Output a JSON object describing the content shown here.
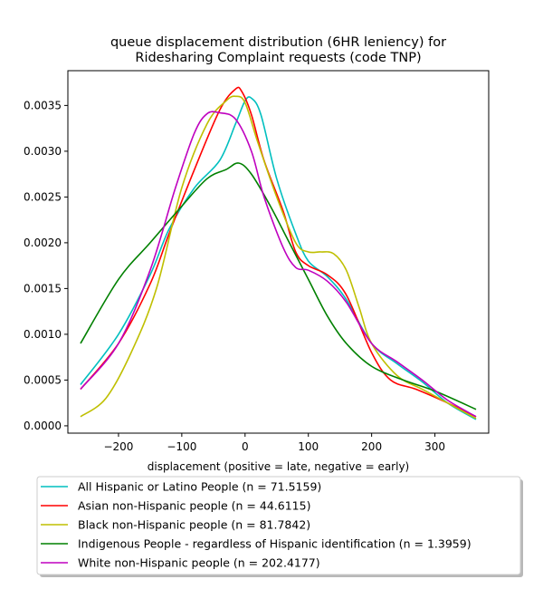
{
  "chart_data": {
    "type": "line",
    "title": "queue displacement distribution (6HR leniency) for\nRidesharing Complaint  requests (code TNP)",
    "xlabel": "displacement (positive = late, negative = early)",
    "ylabel": "",
    "xlim": [
      -280,
      385
    ],
    "ylim": [
      -8e-05,
      0.00388
    ],
    "xticks": [
      -200,
      -100,
      0,
      100,
      200,
      300
    ],
    "xtick_labels": [
      "−200",
      "−100",
      "0",
      "100",
      "200",
      "300"
    ],
    "yticks": [
      0.0,
      0.0005,
      0.001,
      0.0015,
      0.002,
      0.0025,
      0.003,
      0.0035
    ],
    "ytick_labels": [
      "0.0000",
      "0.0005",
      "0.0010",
      "0.0015",
      "0.0020",
      "0.0025",
      "0.0030",
      "0.0035"
    ],
    "grid": false,
    "legend_position": "below chart",
    "series": [
      {
        "name": "All Hispanic or Latino People (n = 71.5159)",
        "color": "#00bfbf",
        "x": [
          -260,
          -200,
          -150,
          -120,
          -80,
          -40,
          -15,
          0,
          10,
          25,
          50,
          80,
          100,
          130,
          160,
          200,
          240,
          280,
          320,
          365
        ],
        "y": [
          0.00045,
          0.001,
          0.00165,
          0.00215,
          0.0026,
          0.0029,
          0.0033,
          0.00355,
          0.00358,
          0.0034,
          0.0027,
          0.0021,
          0.0018,
          0.00163,
          0.00138,
          0.0009,
          0.00068,
          0.00048,
          0.00025,
          7e-05
        ]
      },
      {
        "name": "Asian non-Hispanic people (n = 44.6115)",
        "color": "#ff0000",
        "x": [
          -260,
          -200,
          -150,
          -120,
          -80,
          -40,
          -15,
          -5,
          10,
          30,
          60,
          80,
          100,
          130,
          160,
          200,
          230,
          270,
          320,
          365
        ],
        "y": [
          0.0004,
          0.0009,
          0.00155,
          0.0021,
          0.0028,
          0.00345,
          0.00368,
          0.00365,
          0.0034,
          0.0029,
          0.00235,
          0.0019,
          0.00175,
          0.00165,
          0.00143,
          0.0008,
          0.0005,
          0.0004,
          0.00025,
          0.0001
        ]
      },
      {
        "name": "Black non-Hispanic people (n = 81.7842)",
        "color": "#bfbf00",
        "x": [
          -260,
          -220,
          -180,
          -140,
          -100,
          -60,
          -30,
          -15,
          0,
          20,
          50,
          80,
          100,
          120,
          140,
          160,
          180,
          200,
          240,
          280,
          320,
          365
        ],
        "y": [
          0.0001,
          0.0003,
          0.0008,
          0.0015,
          0.0026,
          0.0033,
          0.00355,
          0.0036,
          0.00353,
          0.0031,
          0.0025,
          0.002,
          0.0019,
          0.0019,
          0.00188,
          0.0017,
          0.0013,
          0.0009,
          0.00055,
          0.0004,
          0.00025,
          8e-05
        ]
      },
      {
        "name": "Indigenous People - regardless of Hispanic identification (n = 1.3959)",
        "color": "#008000",
        "x": [
          -260,
          -200,
          -150,
          -100,
          -60,
          -30,
          -10,
          10,
          40,
          70,
          100,
          130,
          160,
          200,
          250,
          300,
          365
        ],
        "y": [
          0.0009,
          0.0016,
          0.002,
          0.0024,
          0.0027,
          0.0028,
          0.00287,
          0.00275,
          0.0024,
          0.002,
          0.0016,
          0.0012,
          0.0009,
          0.00065,
          0.0005,
          0.00038,
          0.00018
        ]
      },
      {
        "name": "White non-Hispanic people (n = 202.4177)",
        "color": "#bf00bf",
        "x": [
          -260,
          -200,
          -150,
          -110,
          -80,
          -60,
          -40,
          -15,
          10,
          30,
          60,
          80,
          100,
          130,
          160,
          200,
          240,
          280,
          320,
          365
        ],
        "y": [
          0.0004,
          0.0009,
          0.0017,
          0.0026,
          0.0032,
          0.00341,
          0.00342,
          0.00335,
          0.003,
          0.0025,
          0.00195,
          0.00173,
          0.0017,
          0.00158,
          0.00135,
          0.0009,
          0.0007,
          0.0005,
          0.00028,
          0.0001
        ]
      }
    ]
  }
}
